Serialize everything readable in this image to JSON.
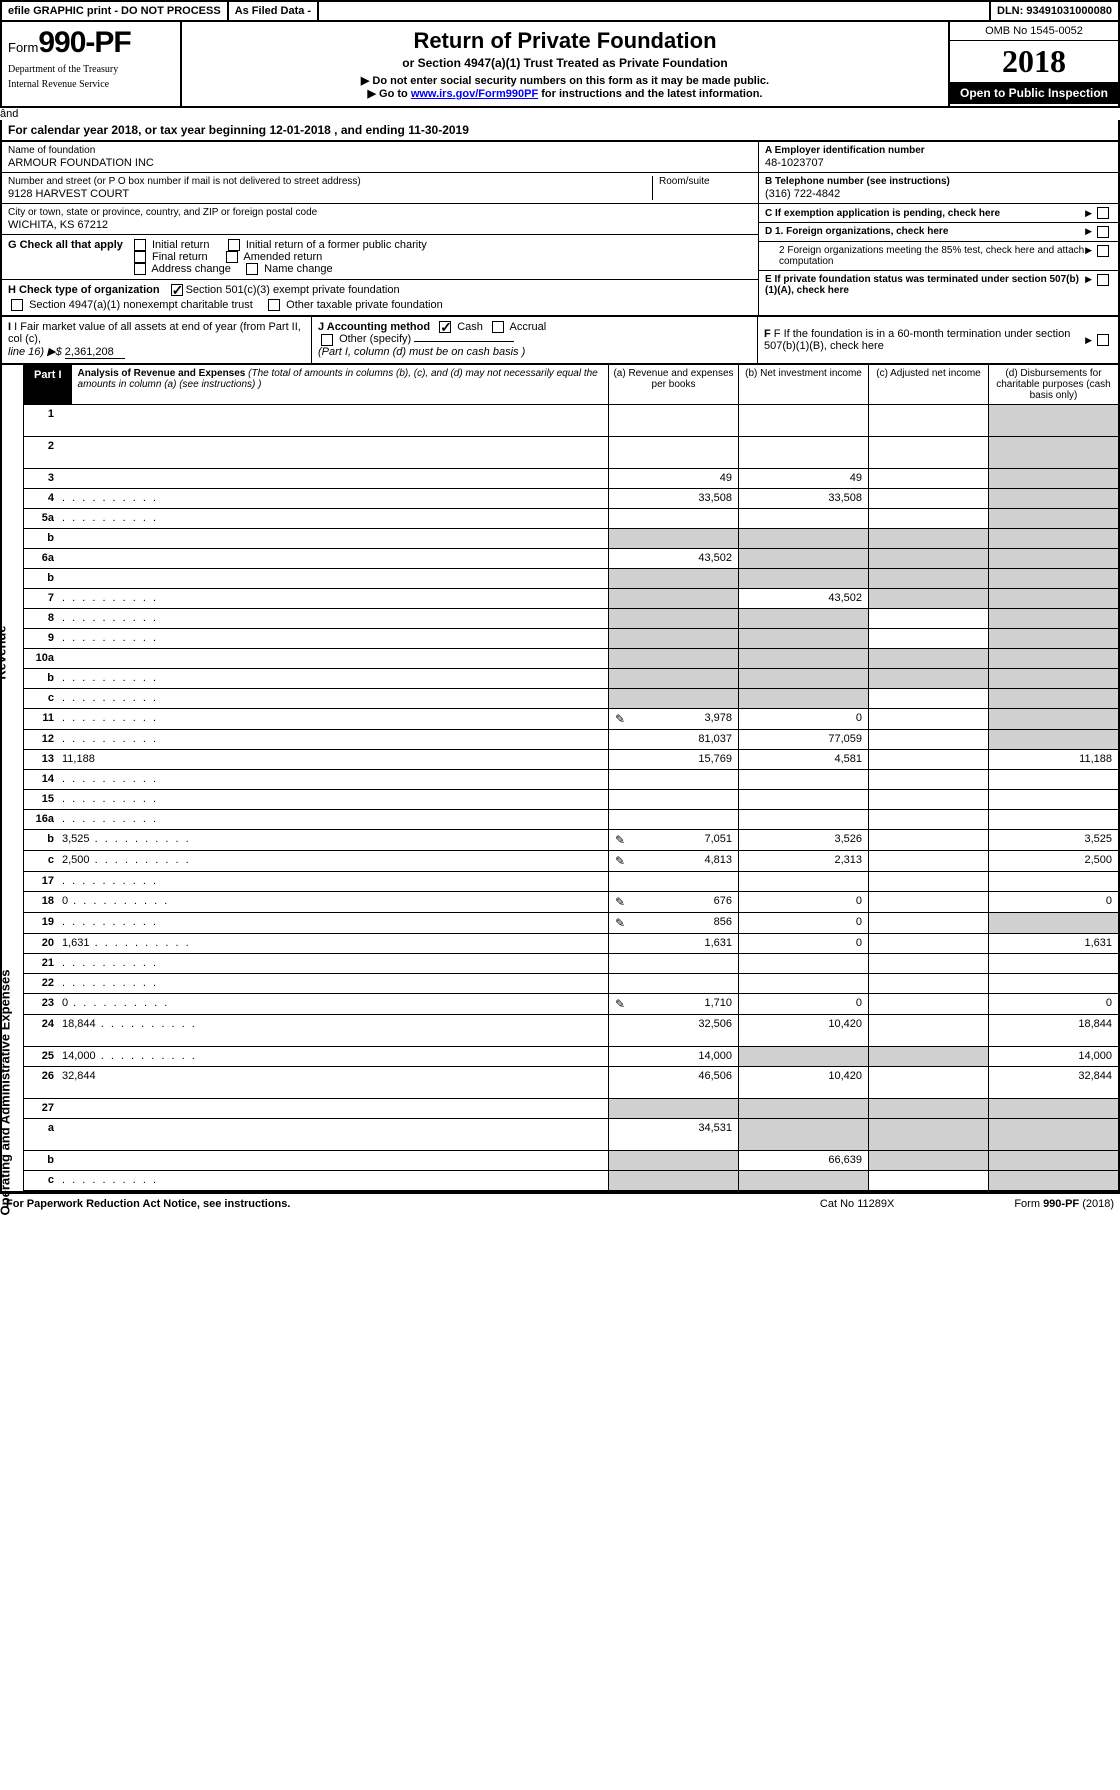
{
  "topbar": {
    "efile": "efile GRAPHIC print - DO NOT PROCESS",
    "asfiled": "As Filed Data -",
    "dln": "DLN: 93491031000080"
  },
  "header": {
    "form_prefix": "Form",
    "form_number": "990-PF",
    "dept1": "Department of the Treasury",
    "dept2": "Internal Revenue Service",
    "title": "Return of Private Foundation",
    "subtitle": "or Section 4947(a)(1) Trust Treated as Private Foundation",
    "instr1": "▶ Do not enter social security numbers on this form as it may be made public.",
    "instr2_pre": "▶ Go to ",
    "instr2_link": "www.irs.gov/Form990PF",
    "instr2_post": " for instructions and the latest information.",
    "omb": "OMB No 1545-0052",
    "year": "2018",
    "open": "Open to Public Inspection"
  },
  "calyear": {
    "text_pre": "For calendar year 2018, or tax year beginning ",
    "begin": "12-01-2018",
    "text_mid": " , and ending ",
    "end": "11-30-2019"
  },
  "id": {
    "name_lbl": "Name of foundation",
    "name": "ARMOUR FOUNDATION INC",
    "addr_lbl": "Number and street (or P O  box number if mail is not delivered to street address)",
    "addr": "9128 HARVEST COURT",
    "room_lbl": "Room/suite",
    "city_lbl": "City or town, state or province, country, and ZIP or foreign postal code",
    "city": "WICHITA, KS  67212",
    "a_lbl": "A Employer identification number",
    "a_val": "48-1023707",
    "b_lbl": "B Telephone number (see instructions)",
    "b_val": "(316) 722-4842",
    "c_lbl": "C If exemption application is pending, check here"
  },
  "g": {
    "lbl": "G Check all that apply",
    "o1": "Initial return",
    "o2": "Initial return of a former public charity",
    "o3": "Final return",
    "o4": "Amended return",
    "o5": "Address change",
    "o6": "Name change"
  },
  "h": {
    "lbl": "H Check type of organization",
    "o1": "Section 501(c)(3) exempt private foundation",
    "o2": "Section 4947(a)(1) nonexempt charitable trust",
    "o3": "Other taxable private foundation"
  },
  "d": {
    "d1": "D 1. Foreign organizations, check here",
    "d2": "2 Foreign organizations meeting the 85% test, check here and attach computation",
    "e": "E If private foundation status was terminated under section 507(b)(1)(A), check here"
  },
  "i": {
    "lbl": "I Fair market value of all assets at end of year (from Part II, col (c),",
    "line": "line 16) ▶$ ",
    "val": "2,361,208"
  },
  "j": {
    "lbl": "J Accounting method",
    "o1": "Cash",
    "o2": "Accrual",
    "o3": "Other (specify)",
    "note": "(Part I, column (d) must be on cash basis )"
  },
  "f": {
    "lbl": "F If the foundation is in a 60-month termination under section 507(b)(1)(B), check here"
  },
  "part1": {
    "badge": "Part I",
    "title": "Analysis of Revenue and Expenses",
    "note": " (The total of amounts in columns (b), (c), and (d) may not necessarily equal the amounts in column (a) (see instructions) )",
    "col_a": "(a) Revenue and expenses per books",
    "col_b": "(b) Net investment income",
    "col_c": "(c) Adjusted net income",
    "col_d": "(d) Disbursements for charitable purposes (cash basis only)"
  },
  "sidelabels": {
    "rev": "Revenue",
    "exp": "Operating and Administrative Expenses"
  },
  "rows": [
    {
      "n": "1",
      "d": "",
      "a": "",
      "b": "",
      "c": "",
      "tall": true,
      "dshade": true
    },
    {
      "n": "2",
      "d": "",
      "a": "",
      "b": "",
      "c": "",
      "tall": true,
      "dshade": true
    },
    {
      "n": "3",
      "d": "",
      "a": "49",
      "b": "49",
      "c": "",
      "dshade": true
    },
    {
      "n": "4",
      "d": "",
      "a": "33,508",
      "b": "33,508",
      "c": "",
      "dots": true,
      "dshade": true
    },
    {
      "n": "5a",
      "d": "",
      "a": "",
      "b": "",
      "c": "",
      "dots": true,
      "dshade": true
    },
    {
      "n": "b",
      "d": "",
      "a": "",
      "b": "",
      "c": "",
      "ashade": true,
      "bshade": true,
      "cshade": true,
      "dshade": true
    },
    {
      "n": "6a",
      "d": "",
      "a": "43,502",
      "b": "",
      "c": "",
      "bshade": true,
      "cshade": true,
      "dshade": true
    },
    {
      "n": "b",
      "d": "",
      "a": "",
      "b": "",
      "c": "",
      "ashade": true,
      "bshade": true,
      "cshade": true,
      "dshade": true
    },
    {
      "n": "7",
      "d": "",
      "a": "",
      "b": "43,502",
      "c": "",
      "dots": true,
      "ashade": true,
      "cshade": true,
      "dshade": true
    },
    {
      "n": "8",
      "d": "",
      "a": "",
      "b": "",
      "c": "",
      "dots": true,
      "ashade": true,
      "bshade": true,
      "dshade": true
    },
    {
      "n": "9",
      "d": "",
      "a": "",
      "b": "",
      "c": "",
      "dots": true,
      "ashade": true,
      "bshade": true,
      "dshade": true
    },
    {
      "n": "10a",
      "d": "",
      "a": "",
      "b": "",
      "c": "",
      "ashade": true,
      "bshade": true,
      "cshade": true,
      "dshade": true
    },
    {
      "n": "b",
      "d": "",
      "a": "",
      "b": "",
      "c": "",
      "dots": true,
      "ashade": true,
      "bshade": true,
      "cshade": true,
      "dshade": true
    },
    {
      "n": "c",
      "d": "",
      "a": "",
      "b": "",
      "c": "",
      "dots": true,
      "ashade": true,
      "bshade": true,
      "dshade": true
    },
    {
      "n": "11",
      "d": "",
      "a": "3,978",
      "b": "0",
      "c": "",
      "dots": true,
      "sched": true,
      "dshade": true
    },
    {
      "n": "12",
      "d": "",
      "a": "81,037",
      "b": "77,059",
      "c": "",
      "dots": true,
      "dshade": true
    },
    {
      "n": "13",
      "d": "11,188",
      "a": "15,769",
      "b": "4,581",
      "c": ""
    },
    {
      "n": "14",
      "d": "",
      "a": "",
      "b": "",
      "c": "",
      "dots": true
    },
    {
      "n": "15",
      "d": "",
      "a": "",
      "b": "",
      "c": "",
      "dots": true
    },
    {
      "n": "16a",
      "d": "",
      "a": "",
      "b": "",
      "c": "",
      "dots": true
    },
    {
      "n": "b",
      "d": "3,525",
      "a": "7,051",
      "b": "3,526",
      "c": "",
      "dots": true,
      "sched": true
    },
    {
      "n": "c",
      "d": "2,500",
      "a": "4,813",
      "b": "2,313",
      "c": "",
      "dots": true,
      "sched": true
    },
    {
      "n": "17",
      "d": "",
      "a": "",
      "b": "",
      "c": "",
      "dots": true
    },
    {
      "n": "18",
      "d": "0",
      "a": "676",
      "b": "0",
      "c": "",
      "dots": true,
      "sched": true
    },
    {
      "n": "19",
      "d": "",
      "a": "856",
      "b": "0",
      "c": "",
      "dots": true,
      "sched": true,
      "dshade": true
    },
    {
      "n": "20",
      "d": "1,631",
      "a": "1,631",
      "b": "0",
      "c": "",
      "dots": true
    },
    {
      "n": "21",
      "d": "",
      "a": "",
      "b": "",
      "c": "",
      "dots": true
    },
    {
      "n": "22",
      "d": "",
      "a": "",
      "b": "",
      "c": "",
      "dots": true
    },
    {
      "n": "23",
      "d": "0",
      "a": "1,710",
      "b": "0",
      "c": "",
      "dots": true,
      "sched": true
    },
    {
      "n": "24",
      "d": "18,844",
      "a": "32,506",
      "b": "10,420",
      "c": "",
      "dots": true,
      "tall": true
    },
    {
      "n": "25",
      "d": "14,000",
      "a": "14,000",
      "b": "",
      "c": "",
      "dots": true,
      "bshade": true,
      "cshade": true
    },
    {
      "n": "26",
      "d": "32,844",
      "a": "46,506",
      "b": "10,420",
      "c": "",
      "tall": true
    },
    {
      "n": "27",
      "d": "",
      "a": "",
      "b": "",
      "c": "",
      "ashade": true,
      "bshade": true,
      "cshade": true,
      "dshade": true
    },
    {
      "n": "a",
      "d": "",
      "a": "34,531",
      "b": "",
      "c": "",
      "tall": true,
      "bshade": true,
      "cshade": true,
      "dshade": true
    },
    {
      "n": "b",
      "d": "",
      "a": "",
      "b": "66,639",
      "c": "",
      "ashade": true,
      "cshade": true,
      "dshade": true
    },
    {
      "n": "c",
      "d": "",
      "a": "",
      "b": "",
      "c": "",
      "dots": true,
      "ashade": true,
      "bshade": true,
      "dshade": true
    }
  ],
  "footer": {
    "left": "For Paperwork Reduction Act Notice, see instructions.",
    "mid": "Cat No 11289X",
    "right": "Form 990-PF (2018)"
  },
  "style": {
    "shade": "#d0d0d0",
    "link": "#0000ff"
  }
}
